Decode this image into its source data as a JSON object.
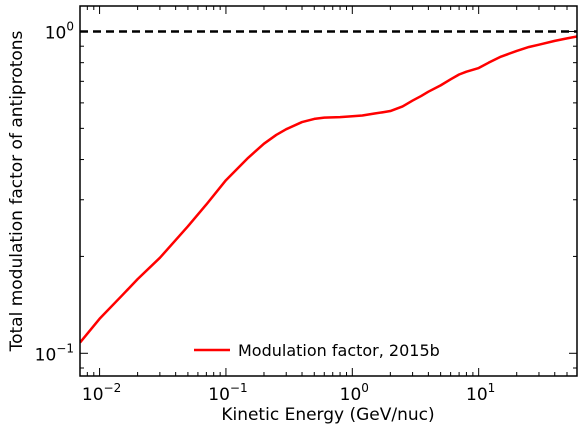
{
  "chart_data": {
    "type": "line",
    "xlabel": "Kinetic Energy (GeV/nuc)",
    "ylabel": "Total modulation factor of antiprotons",
    "xscale": "log",
    "yscale": "log",
    "xlim": [
      0.007,
      60
    ],
    "ylim": [
      0.085,
      1.2
    ],
    "x_ticks": [
      {
        "value": 0.01,
        "base": "10",
        "exp": "−2"
      },
      {
        "value": 0.1,
        "base": "10",
        "exp": "−1"
      },
      {
        "value": 1,
        "base": "10",
        "exp": "0"
      },
      {
        "value": 10,
        "base": "10",
        "exp": "1"
      }
    ],
    "y_ticks": [
      {
        "value": 0.1,
        "base": "10",
        "exp": "−1"
      },
      {
        "value": 1,
        "base": "10",
        "exp": "0"
      }
    ],
    "reference_line": {
      "y": 1,
      "style": "dashed",
      "color": "#000000"
    },
    "legend_position": "bottom-center",
    "series": [
      {
        "name": "Modulation factor, 2015b",
        "color": "#ff0000",
        "x": [
          0.007,
          0.01,
          0.015,
          0.02,
          0.03,
          0.05,
          0.07,
          0.1,
          0.15,
          0.2,
          0.25,
          0.3,
          0.4,
          0.5,
          0.6,
          0.8,
          1.0,
          1.2,
          1.5,
          1.8,
          2.0,
          2.5,
          3.0,
          3.5,
          4.0,
          5.0,
          6.0,
          7.0,
          8.0,
          10,
          12,
          15,
          20,
          25,
          30,
          40,
          50,
          60
        ],
        "y": [
          0.108,
          0.128,
          0.151,
          0.17,
          0.198,
          0.248,
          0.29,
          0.345,
          0.405,
          0.448,
          0.477,
          0.497,
          0.523,
          0.535,
          0.54,
          0.542,
          0.545,
          0.548,
          0.556,
          0.562,
          0.566,
          0.585,
          0.61,
          0.63,
          0.65,
          0.68,
          0.71,
          0.735,
          0.75,
          0.77,
          0.8,
          0.835,
          0.87,
          0.895,
          0.91,
          0.935,
          0.952,
          0.965
        ]
      }
    ]
  }
}
